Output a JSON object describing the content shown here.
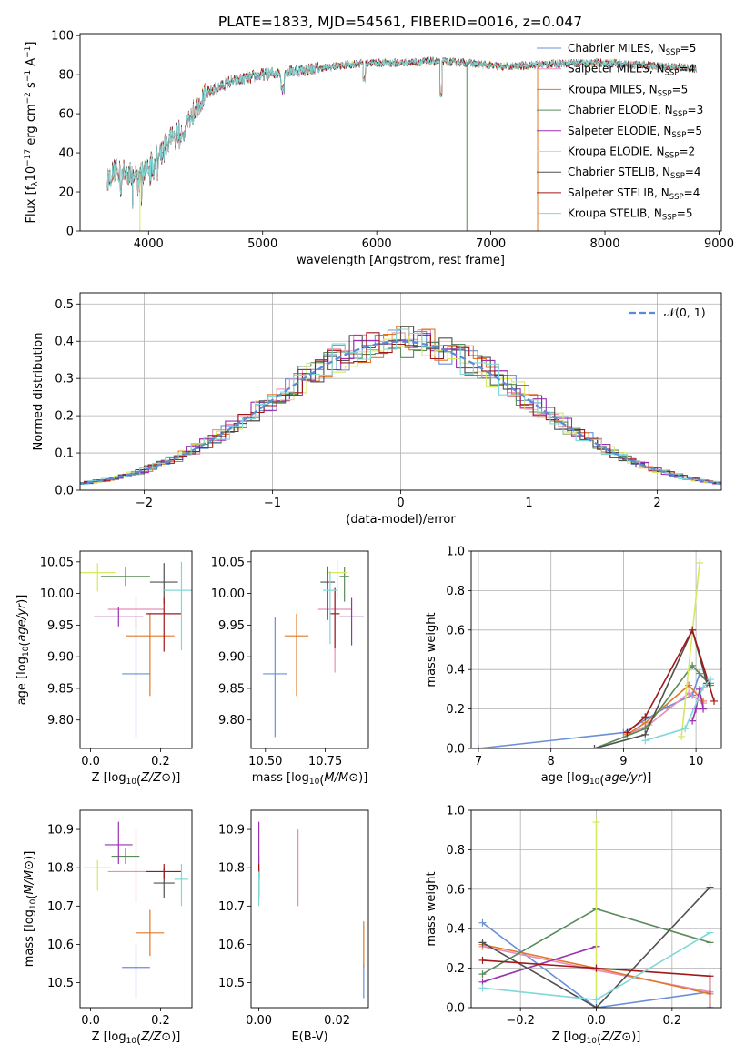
{
  "title": "PLATE=1833, MJD=54561, FIBERID=0016, z=0.047",
  "colors": [
    "#6a8fd8",
    "#e88fb8",
    "#e07828",
    "#5a8a5a",
    "#9b30b0",
    "#d8e860",
    "#505050",
    "#a01818",
    "#80d8d8"
  ],
  "chart_data": [
    {
      "id": "spectrum",
      "type": "line",
      "xlabel": "wavelength [Angstrom, rest frame]",
      "ylabel": "Flux [f_λ 10^-17 erg cm^-2 s^-1 A^-1]",
      "xlim": [
        3400,
        9020
      ],
      "ylim": [
        0,
        101
      ],
      "xticks": [
        4000,
        5000,
        6000,
        7000,
        8000,
        9000
      ],
      "yticks": [
        0,
        20,
        40,
        60,
        80,
        100
      ],
      "x_range": [
        3640,
        8800
      ],
      "continuum": [
        [
          3640,
          26
        ],
        [
          3700,
          31
        ],
        [
          3800,
          30
        ],
        [
          3900,
          28
        ],
        [
          4000,
          34
        ],
        [
          4100,
          40
        ],
        [
          4200,
          48
        ],
        [
          4300,
          52
        ],
        [
          4400,
          62
        ],
        [
          4500,
          70
        ],
        [
          4700,
          76
        ],
        [
          5000,
          80
        ],
        [
          5300,
          82
        ],
        [
          5600,
          84
        ],
        [
          5900,
          86
        ],
        [
          6200,
          86
        ],
        [
          6500,
          87
        ],
        [
          6800,
          86
        ],
        [
          7100,
          84
        ],
        [
          7400,
          85
        ],
        [
          7700,
          86
        ],
        [
          8000,
          86
        ],
        [
          8300,
          85
        ],
        [
          8600,
          84
        ],
        [
          8800,
          83
        ]
      ],
      "spike_wavelengths": [
        3925,
        6790,
        7410
      ],
      "legend": [
        {
          "label": "Chabrier MILES, N",
          "n": "5"
        },
        {
          "label": "Salpeter MILES, N",
          "n": "4"
        },
        {
          "label": "Kroupa MILES, N",
          "n": "5"
        },
        {
          "label": "Chabrier ELODIE, N",
          "n": "3"
        },
        {
          "label": "Salpeter ELODIE, N",
          "n": "5"
        },
        {
          "label": "Kroupa ELODIE, N",
          "n": "2"
        },
        {
          "label": "Chabrier STELIB, N",
          "n": "4"
        },
        {
          "label": "Salpeter STELIB, N",
          "n": "4"
        },
        {
          "label": "Kroupa STELIB, N",
          "n": "5"
        }
      ],
      "legend_sub": "SSP",
      "legend_position": "upper right"
    },
    {
      "id": "residuals",
      "type": "histogram",
      "xlabel": "(data-model)/error",
      "ylabel": "Normed distribution",
      "xlim": [
        -2.5,
        2.5
      ],
      "ylim": [
        0,
        0.53
      ],
      "xticks": [
        -2,
        -1,
        0,
        1,
        2
      ],
      "yticks": [
        0.0,
        0.1,
        0.2,
        0.3,
        0.4,
        0.5
      ],
      "bin_width": 0.1,
      "gaussian_label": "𝒩(0, 1)",
      "grid": true
    },
    {
      "id": "age_vs_Z",
      "type": "errorbar",
      "xlabel": "Z [log10(Z/Z⊙)]",
      "ylabel": "age  [log10(age/yr)]",
      "xlim": [
        -0.03,
        0.29
      ],
      "ylim": [
        9.755,
        10.067
      ],
      "xticks": [
        0.0,
        0.2
      ],
      "yticks": [
        9.8,
        9.85,
        9.9,
        9.95,
        10.0,
        10.05
      ],
      "points": [
        {
          "x": 0.13,
          "xerr": 0.04,
          "y": 9.873,
          "ylo": 0.1,
          "yhi": 0.09
        },
        {
          "x": 0.13,
          "xerr": 0.08,
          "y": 9.975,
          "ylo": 0.03,
          "yhi": 0.02
        },
        {
          "x": 0.17,
          "xerr": 0.07,
          "y": 9.933,
          "ylo": 0.095,
          "yhi": 0.035
        },
        {
          "x": 0.1,
          "xerr": 0.07,
          "y": 10.027,
          "ylo": 0.015,
          "yhi": 0.015
        },
        {
          "x": 0.08,
          "xerr": 0.07,
          "y": 9.963,
          "ylo": 0.015,
          "yhi": 0.015
        },
        {
          "x": 0.02,
          "xerr": 0.05,
          "y": 10.033,
          "ylo": 0.03,
          "yhi": 0.015
        },
        {
          "x": 0.21,
          "xerr": 0.04,
          "y": 10.018,
          "ylo": 0.035,
          "yhi": 0.03
        },
        {
          "x": 0.21,
          "xerr": 0.05,
          "y": 9.968,
          "ylo": 0.06,
          "yhi": 0.025
        },
        {
          "x": 0.26,
          "xerr": 0.05,
          "y": 10.005,
          "ylo": 0.095,
          "yhi": 0.045
        }
      ]
    },
    {
      "id": "age_vs_mass",
      "type": "errorbar",
      "xlabel": "mass [log10(M/M⊙)]",
      "ylabel": "",
      "xlim": [
        10.44,
        10.93
      ],
      "ylim": [
        9.755,
        10.067
      ],
      "xticks": [
        10.5,
        10.75
      ],
      "yticks": [
        9.8,
        9.85,
        9.9,
        9.95,
        10.0,
        10.05
      ],
      "points": [
        {
          "x": 10.54,
          "xerr": 0.05,
          "y": 9.873,
          "ylo": 0.1,
          "yhi": 0.09
        },
        {
          "x": 10.79,
          "xerr": 0.07,
          "y": 9.975,
          "ylo": 0.1,
          "yhi": 0.035
        },
        {
          "x": 10.63,
          "xerr": 0.05,
          "y": 9.933,
          "ylo": 0.095,
          "yhi": 0.035
        },
        {
          "x": 10.83,
          "xerr": 0.02,
          "y": 10.027,
          "ylo": 0.04,
          "yhi": 0.015
        },
        {
          "x": 10.86,
          "xerr": 0.05,
          "y": 9.963,
          "ylo": 0.045,
          "yhi": 0.03
        },
        {
          "x": 10.8,
          "xerr": 0.04,
          "y": 10.033,
          "ylo": 0.04,
          "yhi": 0.02
        },
        {
          "x": 10.76,
          "xerr": 0.03,
          "y": 10.018,
          "ylo": 0.06,
          "yhi": 0.025
        },
        {
          "x": 10.79,
          "xerr": 0.02,
          "y": 9.968,
          "ylo": 0.055,
          "yhi": 0.04
        },
        {
          "x": 10.77,
          "xerr": 0.03,
          "y": 10.005,
          "ylo": 0.085,
          "yhi": 0.03
        }
      ]
    },
    {
      "id": "mass_weight_vs_age",
      "type": "line",
      "xlabel": "age  [log10(age/yr)]",
      "ylabel": "mass weight",
      "xlim": [
        6.9,
        10.35
      ],
      "ylim": [
        0,
        1.0
      ],
      "xticks": [
        7,
        8,
        9,
        10
      ],
      "yticks": [
        0.0,
        0.2,
        0.4,
        0.6,
        0.8,
        1.0
      ],
      "grid": true,
      "series": [
        {
          "points": [
            [
              7.0,
              0.0
            ],
            [
              9.0,
              0.08
            ],
            [
              9.6,
              0.21
            ],
            [
              9.95,
              0.27
            ],
            [
              10.05,
              0.38
            ],
            [
              10.2,
              0.33
            ]
          ]
        },
        {
          "points": [
            [
              9.05,
              0.07
            ],
            [
              9.35,
              0.12
            ],
            [
              9.9,
              0.28
            ],
            [
              10.1,
              0.23
            ]
          ]
        },
        {
          "points": [
            [
              9.05,
              0.07
            ],
            [
              9.3,
              0.13
            ],
            [
              9.9,
              0.32
            ],
            [
              10.1,
              0.24
            ]
          ]
        },
        {
          "points": [
            [
              8.6,
              0.0
            ],
            [
              9.3,
              0.1
            ],
            [
              9.95,
              0.42
            ],
            [
              10.2,
              0.32
            ]
          ]
        },
        {
          "points": [
            [
              9.95,
              0.14
            ],
            [
              10.0,
              0.2
            ],
            [
              10.05,
              0.3
            ],
            [
              10.1,
              0.2
            ]
          ]
        },
        {
          "points": [
            [
              9.8,
              0.06
            ],
            [
              10.05,
              0.94
            ]
          ]
        },
        {
          "points": [
            [
              8.6,
              0.0
            ],
            [
              9.3,
              0.07
            ],
            [
              9.95,
              0.6
            ],
            [
              10.15,
              0.33
            ]
          ]
        },
        {
          "points": [
            [
              9.05,
              0.08
            ],
            [
              9.3,
              0.16
            ],
            [
              9.95,
              0.6
            ],
            [
              10.25,
              0.24
            ]
          ]
        },
        {
          "points": [
            [
              9.3,
              0.04
            ],
            [
              9.85,
              0.1
            ],
            [
              10.1,
              0.31
            ],
            [
              10.2,
              0.35
            ]
          ]
        }
      ]
    },
    {
      "id": "mass_vs_Z",
      "type": "errorbar",
      "xlabel": "Z [log10(Z/Z⊙)]",
      "ylabel": "mass [log10(M/M⊙)]",
      "xlim": [
        -0.03,
        0.29
      ],
      "ylim": [
        10.435,
        10.95
      ],
      "xticks": [
        0.0,
        0.2
      ],
      "yticks": [
        10.5,
        10.6,
        10.7,
        10.8,
        10.9
      ],
      "points": [
        {
          "x": 0.13,
          "xerr": 0.04,
          "y": 10.54,
          "ylo": 0.08,
          "yhi": 0.06
        },
        {
          "x": 0.13,
          "xerr": 0.08,
          "y": 10.79,
          "ylo": 0.08,
          "yhi": 0.11
        },
        {
          "x": 0.17,
          "xerr": 0.04,
          "y": 10.63,
          "ylo": 0.06,
          "yhi": 0.06
        },
        {
          "x": 0.1,
          "xerr": 0.04,
          "y": 10.83,
          "ylo": 0.02,
          "yhi": 0.02
        },
        {
          "x": 0.08,
          "xerr": 0.04,
          "y": 10.86,
          "ylo": 0.05,
          "yhi": 0.06
        },
        {
          "x": 0.02,
          "xerr": 0.04,
          "y": 10.8,
          "ylo": 0.06,
          "yhi": 0.02
        },
        {
          "x": 0.21,
          "xerr": 0.03,
          "y": 10.76,
          "ylo": 0.04,
          "yhi": 0.04
        },
        {
          "x": 0.21,
          "xerr": 0.05,
          "y": 10.79,
          "ylo": 0.02,
          "yhi": 0.02
        },
        {
          "x": 0.26,
          "xerr": 0.02,
          "y": 10.77,
          "ylo": 0.07,
          "yhi": 0.04
        }
      ]
    },
    {
      "id": "mass_vs_ebv",
      "type": "errorbar",
      "xlabel": "E(B-V)",
      "ylabel": "",
      "xlim": [
        -0.002,
        0.028
      ],
      "ylim": [
        10.435,
        10.95
      ],
      "xticks": [
        0.0,
        0.02
      ],
      "yticks": [
        10.5,
        10.6,
        10.7,
        10.8,
        10.9
      ],
      "points": [
        {
          "x": 0.0268,
          "xerr": 0,
          "y": 10.52,
          "ylo": 0.06,
          "yhi": 0.03
        },
        {
          "x": 0.01,
          "xerr": 0,
          "y": 10.8,
          "ylo": 0.1,
          "yhi": 0.1
        },
        {
          "x": 0.0268,
          "xerr": 0,
          "y": 10.6,
          "ylo": 0.06,
          "yhi": 0.06
        },
        {
          "x": 0.0,
          "xerr": 0,
          "y": 10.8,
          "ylo": 0.03,
          "yhi": 0.03
        },
        {
          "x": 0.0,
          "xerr": 0,
          "y": 10.86,
          "ylo": 0.05,
          "yhi": 0.06
        },
        {
          "x": 0.0,
          "xerr": 0,
          "y": 10.78,
          "ylo": 0.06,
          "yhi": 0.02
        },
        {
          "x": 0.0,
          "xerr": 0,
          "y": 10.76,
          "ylo": 0.04,
          "yhi": 0.04
        },
        {
          "x": 0.0,
          "xerr": 0,
          "y": 10.79,
          "ylo": 0.02,
          "yhi": 0.02
        },
        {
          "x": 0.0,
          "xerr": 0,
          "y": 10.75,
          "ylo": 0.05,
          "yhi": 0.04
        }
      ]
    },
    {
      "id": "mass_weight_vs_Z",
      "type": "line",
      "xlabel": "Z [log10(Z/Z⊙)]",
      "ylabel": "mass weight",
      "xlim": [
        -0.33,
        0.33
      ],
      "ylim": [
        0,
        1.0
      ],
      "xticks": [
        -0.2,
        0.0,
        0.2
      ],
      "yticks": [
        0.0,
        0.2,
        0.4,
        0.6,
        0.8,
        1.0
      ],
      "grid": true,
      "series": [
        {
          "points": [
            [
              -0.3,
              0.43
            ],
            [
              0.0,
              0.0
            ],
            [
              0.3,
              0.08
            ]
          ]
        },
        {
          "points": [
            [
              -0.3,
              0.31
            ],
            [
              0.0,
              0.19
            ],
            [
              0.3,
              0.08
            ]
          ]
        },
        {
          "points": [
            [
              -0.3,
              0.32
            ],
            [
              0.0,
              0.2
            ],
            [
              0.3,
              0.07
            ]
          ]
        },
        {
          "points": [
            [
              -0.3,
              0.17
            ],
            [
              0.0,
              0.5
            ],
            [
              0.3,
              0.33
            ]
          ]
        },
        {
          "points": [
            [
              -0.3,
              0.13
            ],
            [
              0.0,
              0.31
            ]
          ]
        },
        {
          "points": [
            [
              0.0,
              0.94
            ],
            [
              0.0,
              0.0
            ]
          ]
        },
        {
          "points": [
            [
              -0.3,
              0.33
            ],
            [
              0.0,
              0.0
            ],
            [
              0.3,
              0.61
            ]
          ]
        },
        {
          "points": [
            [
              -0.3,
              0.24
            ],
            [
              0.0,
              0.2
            ],
            [
              0.3,
              0.16
            ],
            [
              0.3,
              0.0
            ]
          ]
        },
        {
          "points": [
            [
              -0.3,
              0.1
            ],
            [
              0.0,
              0.04
            ],
            [
              0.3,
              0.38
            ]
          ]
        }
      ]
    }
  ]
}
